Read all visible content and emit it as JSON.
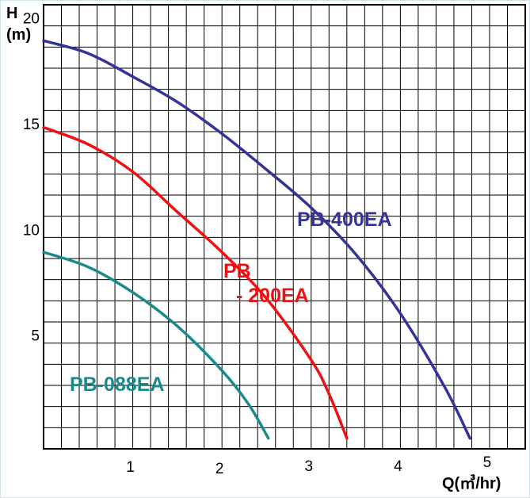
{
  "chart_data": {
    "type": "line",
    "title": "",
    "ylabel_line1": "H",
    "ylabel_line2": "(m)",
    "xlabel": "Q(㎥/hr)",
    "xlim": [
      0,
      5.4
    ],
    "ylim": [
      0,
      21
    ],
    "x_ticks": [
      "1",
      "2",
      "3",
      "4",
      "5"
    ],
    "y_ticks": [
      "5",
      "10",
      "15",
      "20"
    ],
    "grid": true,
    "series": [
      {
        "name": "PB-400EA",
        "color": "#333399",
        "x": [
          0,
          0.5,
          1.0,
          1.5,
          2.0,
          2.5,
          3.0,
          3.5,
          4.0,
          4.5,
          4.78
        ],
        "y": [
          19.3,
          18.7,
          17.6,
          16.4,
          14.9,
          13.2,
          11.4,
          9.2,
          6.4,
          2.9,
          0.5
        ]
      },
      {
        "name": "PB - 200EA",
        "label_line1": "PB",
        "label_line2": "- 200EA",
        "color": "#ee1111",
        "x": [
          0,
          0.5,
          1.0,
          1.5,
          2.0,
          2.5,
          3.0,
          3.2,
          3.4
        ],
        "y": [
          15.2,
          14.4,
          13.1,
          11.2,
          9.3,
          7.1,
          4.2,
          2.6,
          0.5
        ]
      },
      {
        "name": "PB-088EA",
        "color": "#1a8a8a",
        "x": [
          0,
          0.5,
          1.0,
          1.5,
          2.0,
          2.3,
          2.52
        ],
        "y": [
          9.3,
          8.6,
          7.4,
          5.8,
          3.7,
          2.1,
          0.5
        ]
      }
    ]
  }
}
